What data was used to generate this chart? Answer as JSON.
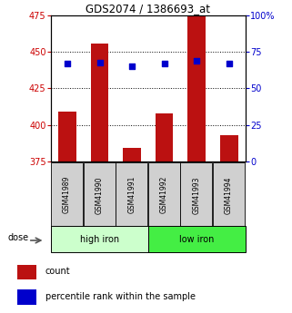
{
  "title": "GDS2074 / 1386693_at",
  "samples": [
    "GSM41989",
    "GSM41990",
    "GSM41991",
    "GSM41992",
    "GSM41993",
    "GSM41994"
  ],
  "bar_values": [
    409,
    456,
    384,
    408,
    476,
    393
  ],
  "bar_bottom": 375,
  "percentile_values": [
    67,
    68,
    65,
    67,
    69,
    67
  ],
  "ylim_left": [
    375,
    475
  ],
  "ylim_right": [
    0,
    100
  ],
  "y_ticks_left": [
    375,
    400,
    425,
    450,
    475
  ],
  "y_ticks_right": [
    0,
    25,
    50,
    75,
    100
  ],
  "bar_color": "#bb1111",
  "dot_color": "#0000cc",
  "high_iron_bg": "#ccffcc",
  "low_iron_bg": "#44ee44",
  "sample_box_bg": "#d0d0d0",
  "left_axis_color": "#cc0000",
  "right_axis_color": "#0000cc",
  "legend_count": "count",
  "legend_percentile": "percentile rank within the sample"
}
